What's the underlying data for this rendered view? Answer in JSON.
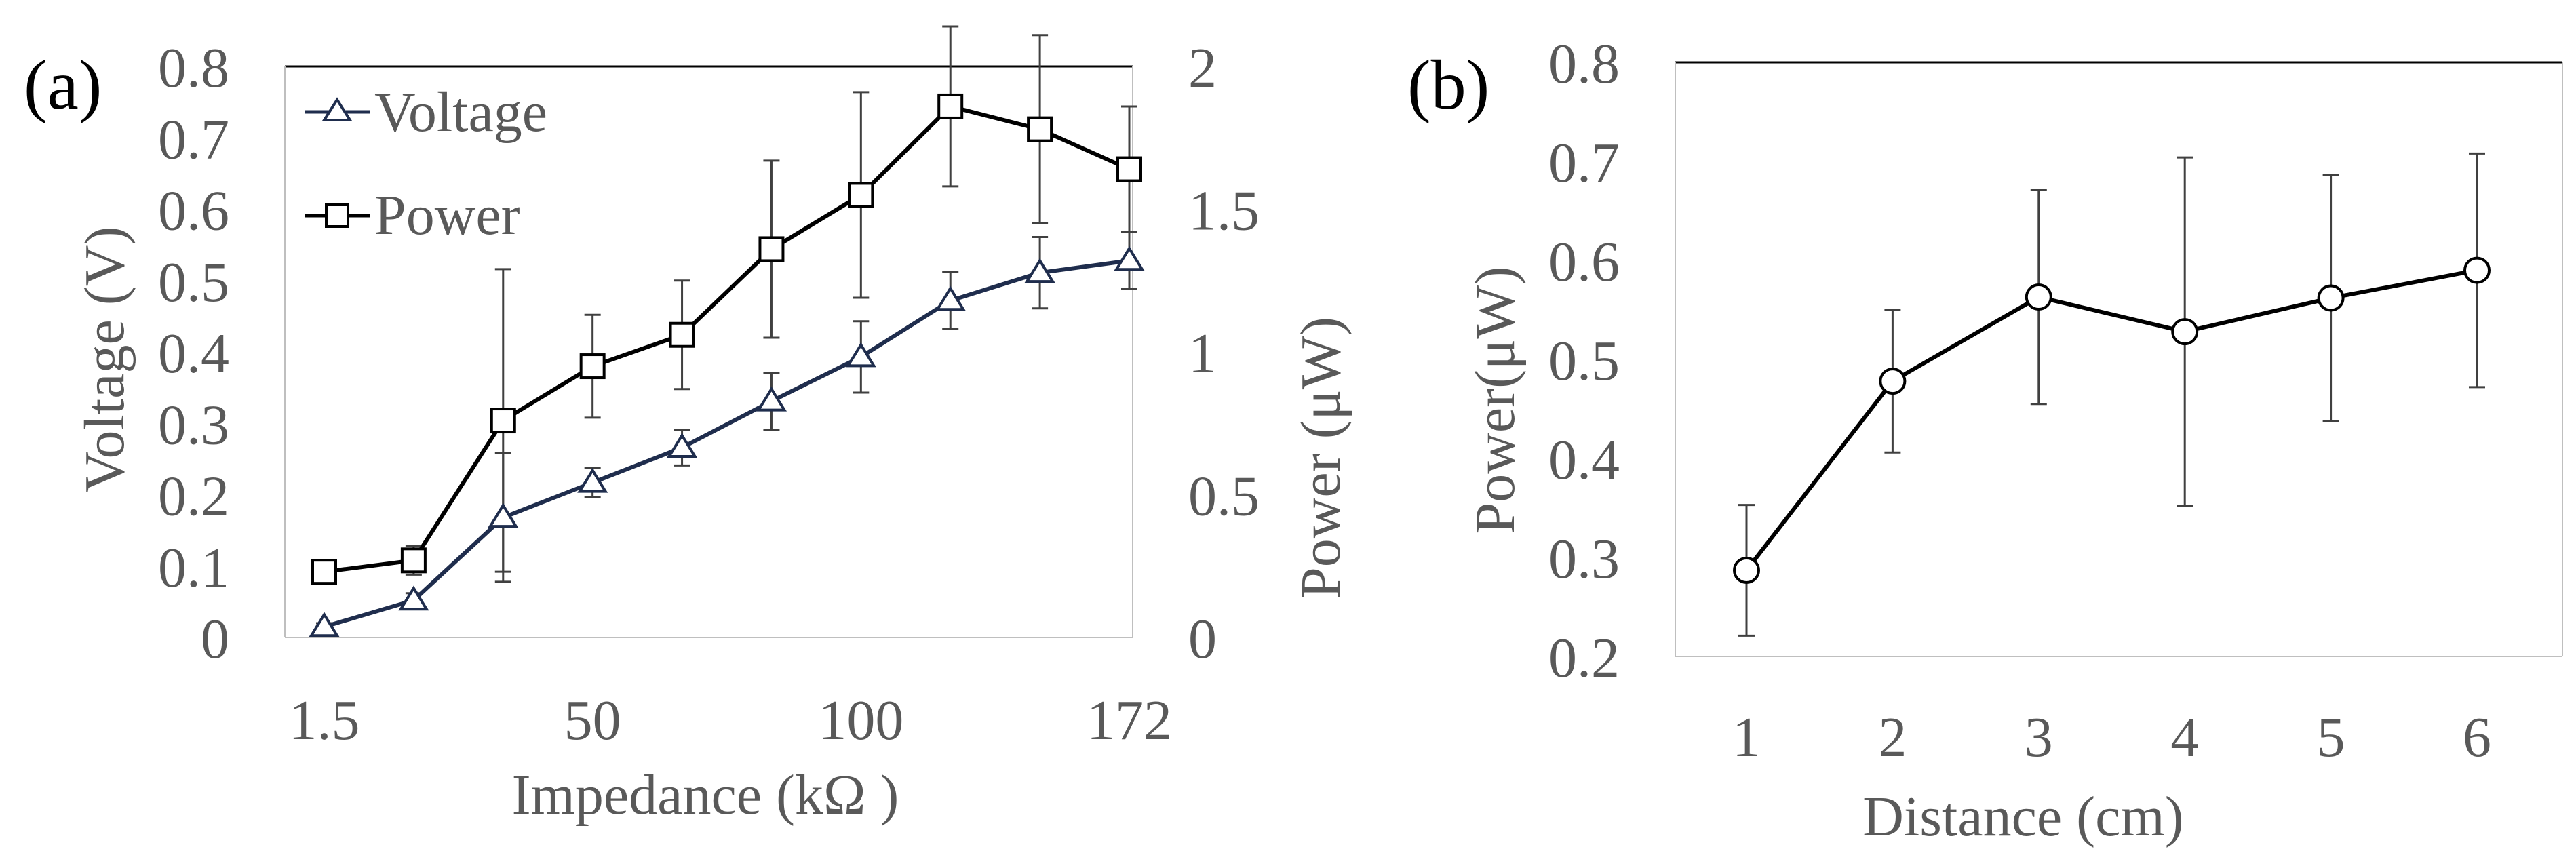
{
  "colors": {
    "text": "#595959",
    "panel_label": "#000000",
    "axis_line": "#000000",
    "voltage_series": "#1f2d4d",
    "power_series": "#000000",
    "error_bar": "#404040"
  },
  "panel_a": {
    "label": "(a)",
    "legend": [
      {
        "name": "Voltage",
        "marker": "triangle-icon"
      },
      {
        "name": "Power",
        "marker": "square-icon"
      }
    ]
  },
  "panel_b": {
    "label": "(b)"
  },
  "chart_data": [
    {
      "type": "line",
      "panel": "(a)",
      "xlabel": "Impedance (kΩ )",
      "ylabel": "Voltage (V)",
      "y2label": "Power (μW)",
      "x": [
        "1.5",
        "",
        "",
        "50",
        "",
        "",
        "100",
        "",
        "",
        "172"
      ],
      "x_tick_labels": [
        "1.5",
        "50",
        "100",
        "172"
      ],
      "ylim": [
        0,
        0.8
      ],
      "y_ticks": [
        "0",
        "0.1",
        "0.2",
        "0.3",
        "0.4",
        "0.5",
        "0.6",
        "0.7",
        "0.8"
      ],
      "y2lim": [
        0,
        2
      ],
      "y2_ticks": [
        "0",
        "0.5",
        "1",
        "1.5",
        "2"
      ],
      "grid": false,
      "legend_position": "top-left",
      "series": [
        {
          "name": "Voltage",
          "axis": "left",
          "marker": "triangle",
          "values": [
            0.015,
            0.052,
            0.168,
            0.217,
            0.266,
            0.331,
            0.393,
            0.472,
            0.511,
            0.528
          ],
          "error": [
            0.005,
            0.01,
            0.09,
            0.02,
            0.025,
            0.04,
            0.05,
            0.04,
            0.05,
            0.04
          ]
        },
        {
          "name": "Power",
          "axis": "right",
          "marker": "square",
          "values": [
            0.23,
            0.27,
            0.76,
            0.95,
            1.06,
            1.36,
            1.55,
            1.86,
            1.78,
            1.64
          ],
          "error": [
            0.03,
            0.05,
            0.53,
            0.18,
            0.19,
            0.31,
            0.36,
            0.28,
            0.33,
            0.22
          ]
        }
      ]
    },
    {
      "type": "line",
      "panel": "(b)",
      "xlabel": "Distance (cm)",
      "ylabel": "Power(μW)",
      "categories": [
        "1",
        "2",
        "3",
        "4",
        "5",
        "6"
      ],
      "ylim": [
        0.2,
        0.8
      ],
      "y_ticks": [
        "0.2",
        "0.3",
        "0.4",
        "0.5",
        "0.6",
        "0.7",
        "0.8"
      ],
      "grid": false,
      "series": [
        {
          "name": "Power",
          "marker": "circle",
          "values": [
            0.287,
            0.478,
            0.563,
            0.528,
            0.562,
            0.59
          ],
          "error": [
            0.066,
            0.072,
            0.108,
            0.176,
            0.124,
            0.118
          ]
        }
      ]
    }
  ]
}
